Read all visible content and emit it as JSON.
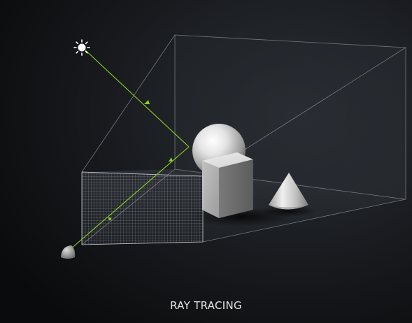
{
  "caption": "RAY TRACING",
  "colors": {
    "background": "#0e0f11",
    "ray": "#8fcf1e",
    "wireframe": "#8a8f96",
    "caption": "#e6e6e6"
  },
  "icons": {
    "light": "sun-icon",
    "viewer": "camera-eye-icon"
  },
  "objects": [
    "sphere",
    "cube",
    "cone"
  ]
}
